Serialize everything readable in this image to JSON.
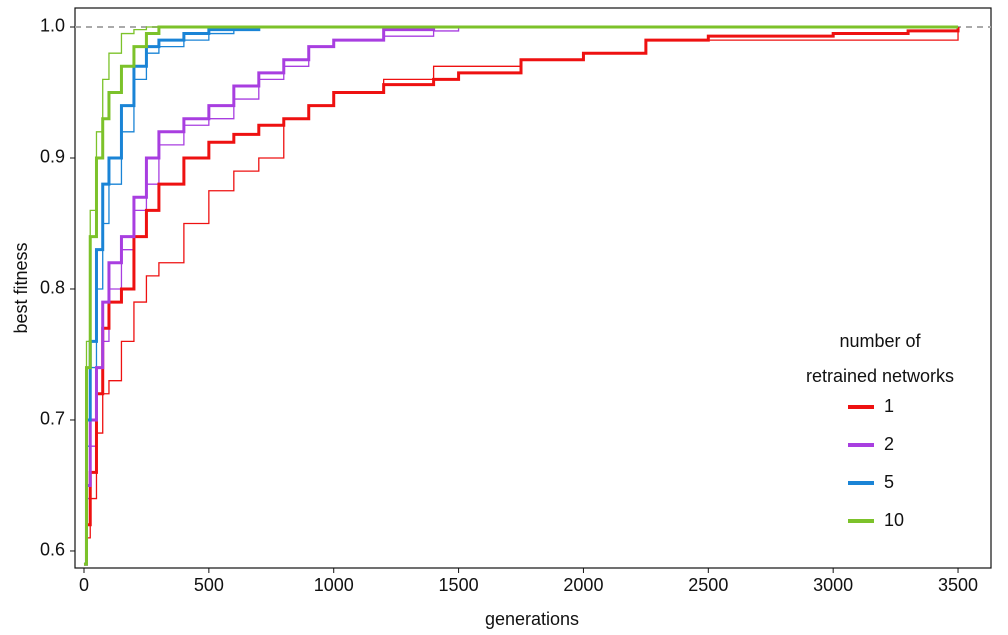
{
  "chart_data": {
    "type": "line",
    "step": true,
    "x_label": "generations",
    "y_label": "best fitness",
    "xlim": [
      -36,
      3632
    ],
    "ylim": [
      0.587,
      1.0145
    ],
    "xticks": [
      0,
      500,
      1000,
      1500,
      2000,
      2500,
      3000,
      3500
    ],
    "yticks": [
      0.6,
      0.7,
      0.8,
      0.9,
      {
        "value": 1.0,
        "label": "1.0"
      }
    ],
    "reference_line": {
      "value": 1.0,
      "color": "#aaaaaa",
      "dashed": true
    },
    "x": [
      0,
      10,
      25,
      50,
      75,
      100,
      150,
      200,
      250,
      300,
      400,
      500,
      600,
      700,
      800,
      900,
      1000,
      1200,
      1400,
      1500,
      1750,
      2000,
      2250,
      2500,
      3000,
      3300,
      3500
    ],
    "legend_title": [
      "number of",
      "retrained networks"
    ],
    "legend_position": "right",
    "series": [
      {
        "name": "1",
        "color": "#ee1111",
        "values": [
          0.59,
          0.62,
          0.66,
          0.72,
          0.77,
          0.79,
          0.8,
          0.84,
          0.86,
          0.88,
          0.9,
          0.912,
          0.918,
          0.925,
          0.93,
          0.94,
          0.95,
          0.956,
          0.96,
          0.965,
          0.975,
          0.98,
          0.99,
          0.993,
          0.995,
          0.997,
          1.0
        ],
        "thin_values": [
          0.59,
          0.61,
          0.64,
          0.69,
          0.72,
          0.73,
          0.76,
          0.79,
          0.81,
          0.82,
          0.85,
          0.875,
          0.89,
          0.9,
          0.93,
          0.94,
          0.95,
          0.96,
          0.97,
          0.97,
          0.975,
          0.98,
          0.99,
          0.99,
          0.99,
          0.99,
          1.0
        ]
      },
      {
        "name": "2",
        "color": "#a83ee0",
        "values": [
          0.59,
          0.65,
          0.7,
          0.74,
          0.79,
          0.82,
          0.84,
          0.87,
          0.9,
          0.92,
          0.93,
          0.94,
          0.955,
          0.965,
          0.975,
          0.985,
          0.99,
          0.998,
          1.0,
          1.0,
          1.0,
          1.0,
          1.0,
          1.0,
          1.0,
          1.0,
          1.0
        ],
        "thin_values": [
          0.59,
          0.64,
          0.68,
          0.72,
          0.76,
          0.8,
          0.83,
          0.86,
          0.88,
          0.91,
          0.925,
          0.93,
          0.945,
          0.96,
          0.97,
          0.985,
          0.99,
          0.993,
          0.997,
          1.0,
          1.0,
          1.0,
          1.0,
          1.0,
          1.0,
          1.0,
          1.0
        ]
      },
      {
        "name": "5",
        "color": "#1a84d6",
        "values": [
          0.59,
          0.7,
          0.76,
          0.83,
          0.88,
          0.9,
          0.94,
          0.97,
          0.985,
          0.99,
          0.995,
          0.998,
          0.998,
          1.0,
          1.0,
          1.0,
          1.0,
          1.0,
          1.0,
          1.0,
          1.0,
          1.0,
          1.0,
          1.0,
          1.0,
          1.0,
          1.0
        ],
        "thin_values": [
          0.59,
          0.68,
          0.74,
          0.8,
          0.85,
          0.88,
          0.92,
          0.96,
          0.98,
          0.985,
          0.99,
          0.995,
          0.998,
          1.0,
          1.0,
          1.0,
          1.0,
          1.0,
          1.0,
          1.0,
          1.0,
          1.0,
          1.0,
          1.0,
          1.0,
          1.0,
          1.0
        ]
      },
      {
        "name": "10",
        "color": "#7cc22a",
        "values": [
          0.59,
          0.74,
          0.84,
          0.9,
          0.93,
          0.95,
          0.97,
          0.985,
          0.995,
          1.0,
          1.0,
          1.0,
          1.0,
          1.0,
          1.0,
          1.0,
          1.0,
          1.0,
          1.0,
          1.0,
          1.0,
          1.0,
          1.0,
          1.0,
          1.0,
          1.0,
          1.0
        ],
        "thin_values": [
          0.59,
          0.76,
          0.86,
          0.92,
          0.96,
          0.98,
          0.995,
          0.998,
          1.0,
          1.0,
          1.0,
          1.0,
          1.0,
          1.0,
          1.0,
          1.0,
          1.0,
          1.0,
          1.0,
          1.0,
          1.0,
          1.0,
          1.0,
          1.0,
          1.0,
          1.0,
          1.0
        ]
      }
    ]
  }
}
